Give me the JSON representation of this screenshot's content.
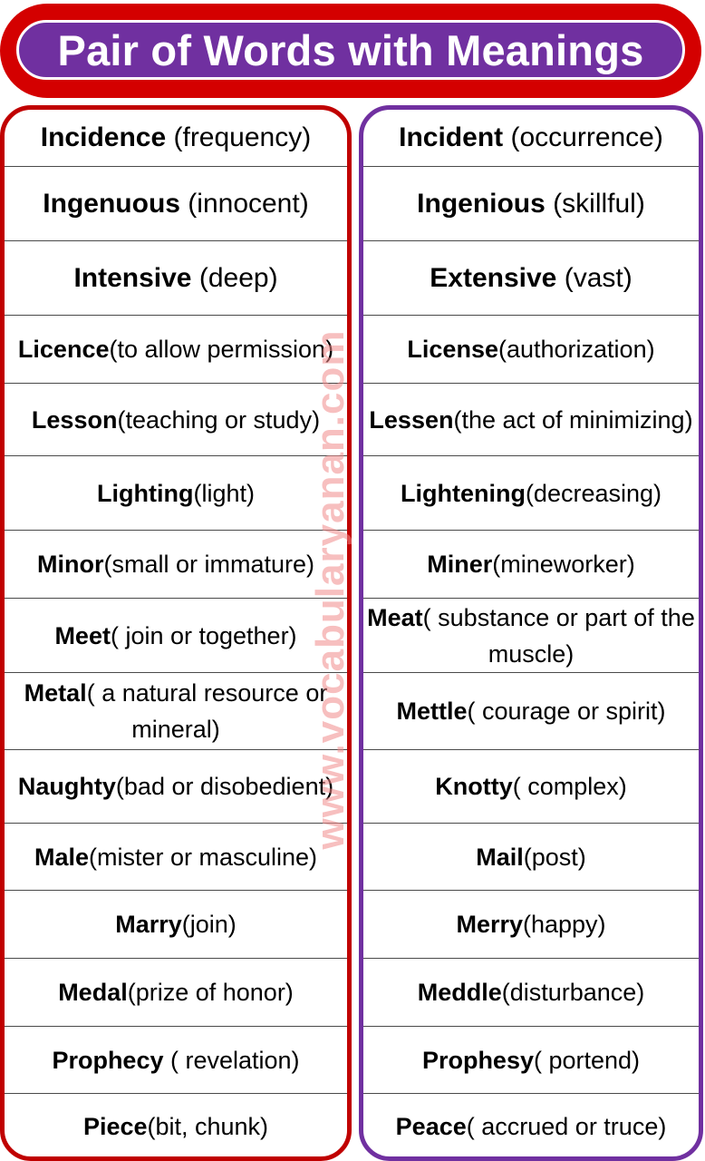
{
  "title": "Pair of Words with Meanings",
  "watermark": "www.vocabularyanan.com",
  "left": [
    {
      "word": "Incidence",
      "meaning": " (frequency)"
    },
    {
      "word": "Ingenuous",
      "meaning": " (innocent)"
    },
    {
      "word": "Intensive",
      "meaning": " (deep)"
    },
    {
      "word": "Licence",
      "meaning": "(to allow permission)"
    },
    {
      "word": "Lesson",
      "meaning": "(teaching or study)"
    },
    {
      "word": "Lighting",
      "meaning": "(light)"
    },
    {
      "word": "Minor",
      "meaning": "(small or immature)"
    },
    {
      "word": "Meet",
      "meaning": "( join or together)"
    },
    {
      "word": "Metal",
      "meaning": "( a natural resource or mineral)"
    },
    {
      "word": "Naughty",
      "meaning": "(bad or disobedient)"
    },
    {
      "word": "Male",
      "meaning": "(mister or masculine)"
    },
    {
      "word": "Marry",
      "meaning": "(join)"
    },
    {
      "word": "Medal",
      "meaning": "(prize of honor)"
    },
    {
      "word": "Prophecy",
      "meaning": " ( revelation)"
    },
    {
      "word": "Piece",
      "meaning": "(bit, chunk)"
    }
  ],
  "right": [
    {
      "word": "Incident",
      "meaning": " (occurrence)"
    },
    {
      "word": "Ingenious",
      "meaning": " (skillful)"
    },
    {
      "word": "Extensive",
      "meaning": " (vast)"
    },
    {
      "word": "License",
      "meaning": "(authorization)"
    },
    {
      "word": "Lessen",
      "meaning": "(the act of minimizing)"
    },
    {
      "word": "Lightening",
      "meaning": "(decreasing)"
    },
    {
      "word": "Miner",
      "meaning": "(mineworker)"
    },
    {
      "word": "Meat",
      "meaning": "( substance or part of the muscle)"
    },
    {
      "word": "Mettle",
      "meaning": "( courage or spirit)"
    },
    {
      "word": "Knotty",
      "meaning": "( complex)"
    },
    {
      "word": "Mail",
      "meaning": "(post)"
    },
    {
      "word": "Merry",
      "meaning": "(happy)"
    },
    {
      "word": "Meddle",
      "meaning": "(disturbance)"
    },
    {
      "word": "Prophesy",
      "meaning": "( portend)"
    },
    {
      "word": "Peace",
      "meaning": "( accrued or truce)"
    }
  ]
}
